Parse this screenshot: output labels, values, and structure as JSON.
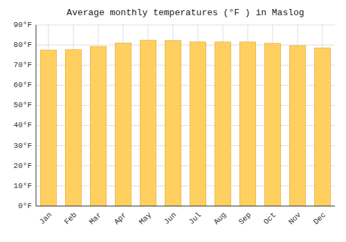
{
  "chart_data": {
    "type": "bar",
    "title": "Average monthly temperatures (°F ) in Maslog",
    "categories": [
      "Jan",
      "Feb",
      "Mar",
      "Apr",
      "May",
      "Jun",
      "Jul",
      "Aug",
      "Sep",
      "Oct",
      "Nov",
      "Dec"
    ],
    "values": [
      77.5,
      77.7,
      79.3,
      81.0,
      82.4,
      82.2,
      81.5,
      81.5,
      81.5,
      80.8,
      79.7,
      78.6
    ],
    "color": "#FFD060",
    "ylim": [
      0,
      90
    ],
    "yticks": [
      {
        "value": 0,
        "label": "0°F"
      },
      {
        "value": 10,
        "label": "10°F"
      },
      {
        "value": 20,
        "label": "20°F"
      },
      {
        "value": 30,
        "label": "30°F"
      },
      {
        "value": 40,
        "label": "40°F"
      },
      {
        "value": 50,
        "label": "50°F"
      },
      {
        "value": 60,
        "label": "60°F"
      },
      {
        "value": 70,
        "label": "70°F"
      },
      {
        "value": 80,
        "label": "80°F"
      },
      {
        "value": 90,
        "label": "90°F"
      }
    ],
    "grid": true
  }
}
